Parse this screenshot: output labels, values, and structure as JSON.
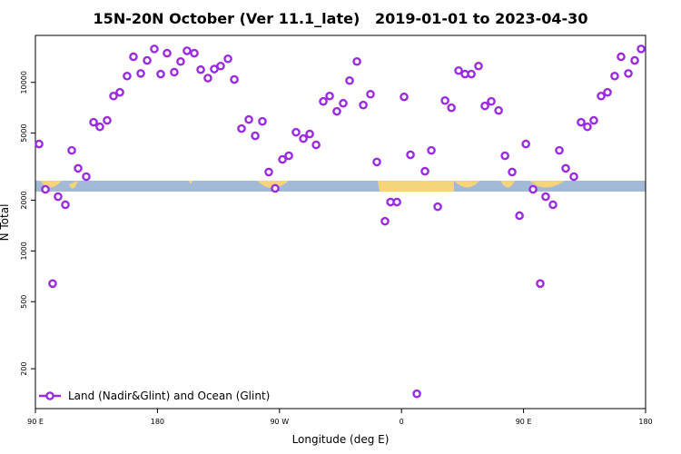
{
  "chart_data": {
    "type": "scatter",
    "title": "15N-20N October (Ver 11.1_late)   2019-01-01 to 2023-04-30",
    "x_label": "Longitude (deg E)",
    "y_label": "N Total",
    "log_y": true,
    "legend_position": "bottom-left",
    "grid": false,
    "xlim": [
      90,
      540
    ],
    "xticks": [
      {
        "value": 90,
        "label": "90 E"
      },
      {
        "value": 180,
        "label": "180"
      },
      {
        "value": 270,
        "label": "90 W"
      },
      {
        "value": 360,
        "label": "0"
      },
      {
        "value": 450,
        "label": "90 E"
      },
      {
        "value": 540,
        "label": "180"
      }
    ],
    "ylim": [
      116,
      19000
    ],
    "yticks": [
      200,
      500,
      1000,
      2000,
      5000,
      10000
    ],
    "series": [
      {
        "name": "Land (Nadir&Glint) and Ocean (Glint)",
        "color": "#9a2be2",
        "x": [
          92.7,
          97.4,
          102.7,
          106.7,
          112.1,
          116.8,
          121.5,
          127.5,
          132.9,
          137.5,
          142.9,
          147.6,
          152.3,
          157.6,
          162.3,
          167.7,
          172.4,
          177.7,
          182.4,
          187.1,
          192.4,
          197.1,
          201.8,
          207.2,
          211.9,
          217.2,
          221.9,
          226.6,
          232.0,
          236.7,
          242.0,
          247.4,
          252.1,
          257.4,
          262.1,
          266.8,
          272.2,
          276.9,
          282.2,
          287.6,
          292.3,
          297.0,
          302.3,
          307.0,
          312.3,
          317.0,
          321.7,
          327.1,
          331.8,
          337.1,
          341.8,
          347.8,
          351.9,
          356.6,
          361.9,
          366.6,
          371.3,
          377.3,
          382.0,
          386.7,
          392.1,
          396.8,
          402.1,
          406.8,
          411.5,
          416.8,
          421.5,
          426.2,
          431.6,
          436.3,
          441.6,
          447.0,
          451.7,
          457.0,
          462.3,
          466.3,
          471.7,
          476.4,
          481.1,
          487.1,
          492.4,
          497.1,
          501.8,
          507.2,
          511.9,
          517.2,
          521.9,
          527.3,
          532.0,
          536.7
        ],
        "values": [
          4310,
          2320,
          640,
          2100,
          1880,
          3950,
          3090,
          2760,
          5800,
          5450,
          5950,
          8300,
          8730,
          10900,
          14200,
          11300,
          13500,
          15800,
          11200,
          14900,
          11500,
          13300,
          15400,
          14900,
          11900,
          10600,
          12000,
          12500,
          13800,
          10400,
          5320,
          6020,
          4820,
          5870,
          2940,
          2350,
          3490,
          3670,
          5060,
          4640,
          4940,
          4260,
          7710,
          8300,
          6730,
          7520,
          10250,
          13300,
          7340,
          8510,
          3370,
          1500,
          1950,
          1950,
          8200,
          3720,
          142,
          2970,
          3950,
          1830,
          7800,
          7070,
          11750,
          11200,
          11200,
          12500,
          7250,
          7710,
          6810,
          3670,
          2940,
          1620,
          4310,
          2320,
          640,
          2100,
          1880,
          3950,
          3090,
          2760,
          5800,
          5450,
          5950,
          8300,
          8730,
          10900,
          14200,
          11300,
          13500,
          15800
        ]
      }
    ]
  }
}
